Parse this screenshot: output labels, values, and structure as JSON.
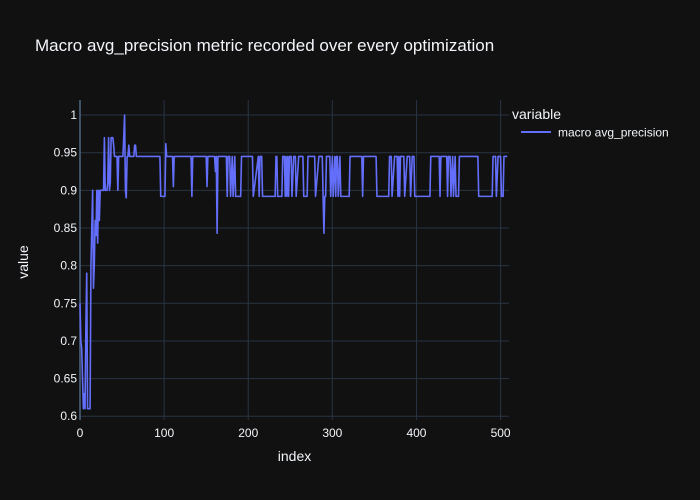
{
  "chart_data": {
    "type": "line",
    "title": "Macro avg_precision metric recorded over every optimization",
    "xlabel": "index",
    "ylabel": "value",
    "xlim": [
      0,
      510
    ],
    "ylim": [
      0.595,
      1.02
    ],
    "x_ticks": [
      0,
      100,
      200,
      300,
      400,
      500
    ],
    "y_ticks": [
      0.6,
      0.65,
      0.7,
      0.75,
      0.8,
      0.85,
      0.9,
      0.95,
      1
    ],
    "grid": true,
    "legend": {
      "title": "variable",
      "position": "top-right"
    },
    "line_color": "#636efa",
    "series": [
      {
        "name": "macro avg_precision",
        "points": [
          [
            0,
            0.75
          ],
          [
            1,
            0.7
          ],
          [
            2,
            0.69
          ],
          [
            3,
            0.65
          ],
          [
            4,
            0.61
          ],
          [
            5,
            0.63
          ],
          [
            6,
            0.61
          ],
          [
            7,
            0.72
          ],
          [
            8,
            0.79
          ],
          [
            9,
            0.61
          ],
          [
            10,
            0.61
          ],
          [
            11,
            0.61
          ],
          [
            12,
            0.61
          ],
          [
            13,
            0.8
          ],
          [
            14,
            0.85
          ],
          [
            15,
            0.9
          ],
          [
            16,
            0.77
          ],
          [
            17,
            0.8
          ],
          [
            18,
            0.86
          ],
          [
            19,
            0.84
          ],
          [
            20,
            0.9
          ],
          [
            21,
            0.83
          ],
          [
            22,
            0.9
          ],
          [
            23,
            0.86
          ],
          [
            24,
            0.9
          ],
          [
            25,
            0.9
          ],
          [
            26,
            0.9
          ],
          [
            27,
            0.9
          ],
          [
            28,
            0.9
          ],
          [
            29,
            0.97
          ],
          [
            30,
            0.9
          ],
          [
            31,
            0.9
          ],
          [
            32,
            0.9
          ],
          [
            33,
            0.91
          ],
          [
            34,
            0.97
          ],
          [
            35,
            0.9
          ],
          [
            36,
            0.91
          ],
          [
            37,
            0.97
          ],
          [
            38,
            0.97
          ],
          [
            39,
            0.97
          ],
          [
            40,
            0.96
          ],
          [
            41,
            0.945
          ],
          [
            42,
            0.945
          ],
          [
            43,
            0.945
          ],
          [
            44,
            0.945
          ],
          [
            45,
            0.9
          ],
          [
            46,
            0.945
          ],
          [
            47,
            0.945
          ],
          [
            48,
            0.945
          ],
          [
            49,
            0.945
          ],
          [
            50,
            0.945
          ],
          [
            51,
            0.945
          ],
          [
            52,
            0.97
          ],
          [
            53,
            1.0
          ],
          [
            54,
            0.9
          ],
          [
            55,
            0.89
          ],
          [
            56,
            0.945
          ],
          [
            57,
            0.945
          ],
          [
            58,
            0.96
          ],
          [
            59,
            0.945
          ],
          [
            60,
            0.945
          ],
          [
            61,
            0.945
          ],
          [
            62,
            0.945
          ],
          [
            63,
            0.945
          ],
          [
            64,
            0.945
          ],
          [
            65,
            0.96
          ],
          [
            66,
            0.96
          ],
          [
            67,
            0.945
          ],
          [
            68,
            0.945
          ],
          [
            69,
            0.945
          ],
          [
            95,
            0.945
          ],
          [
            96,
            0.892
          ],
          [
            101,
            0.892
          ],
          [
            102,
            0.962
          ],
          [
            103,
            0.945
          ],
          [
            110,
            0.945
          ],
          [
            111,
            0.905
          ],
          [
            112,
            0.945
          ],
          [
            132,
            0.945
          ],
          [
            133,
            0.892
          ],
          [
            134,
            0.945
          ],
          [
            150,
            0.945
          ],
          [
            151,
            0.905
          ],
          [
            152,
            0.945
          ],
          [
            160,
            0.945
          ],
          [
            161,
            0.925
          ],
          [
            162,
            0.945
          ],
          [
            163,
            0.843
          ],
          [
            164,
            0.945
          ],
          [
            174,
            0.945
          ],
          [
            175,
            0.892
          ],
          [
            176,
            0.945
          ],
          [
            178,
            0.945
          ],
          [
            179,
            0.892
          ],
          [
            181,
            0.945
          ],
          [
            182,
            0.892
          ],
          [
            184,
            0.945
          ],
          [
            185,
            0.892
          ],
          [
            191,
            0.892
          ],
          [
            192,
            0.945
          ],
          [
            205,
            0.945
          ],
          [
            206,
            0.892
          ],
          [
            212,
            0.945
          ],
          [
            213,
            0.892
          ],
          [
            214,
            0.945
          ],
          [
            216,
            0.945
          ],
          [
            217,
            0.892
          ],
          [
            232,
            0.892
          ],
          [
            233,
            0.945
          ],
          [
            234,
            0.945
          ],
          [
            235,
            0.892
          ],
          [
            240,
            0.892
          ],
          [
            241,
            0.945
          ],
          [
            243,
            0.945
          ],
          [
            244,
            0.892
          ],
          [
            245,
            0.945
          ],
          [
            246,
            0.892
          ],
          [
            247,
            0.945
          ],
          [
            248,
            0.892
          ],
          [
            249,
            0.945
          ],
          [
            251,
            0.945
          ],
          [
            252,
            0.892
          ],
          [
            254,
            0.945
          ],
          [
            256,
            0.945
          ],
          [
            257,
            0.892
          ],
          [
            260,
            0.945
          ],
          [
            265,
            0.945
          ],
          [
            266,
            0.892
          ],
          [
            270,
            0.892
          ],
          [
            271,
            0.945
          ],
          [
            279,
            0.945
          ],
          [
            280,
            0.892
          ],
          [
            284,
            0.945
          ],
          [
            288,
            0.945
          ],
          [
            289,
            0.892
          ],
          [
            290,
            0.843
          ],
          [
            291,
            0.892
          ],
          [
            292,
            0.892
          ],
          [
            293,
            0.945
          ],
          [
            297,
            0.945
          ],
          [
            298,
            0.892
          ],
          [
            300,
            0.945
          ],
          [
            301,
            0.892
          ],
          [
            303,
            0.945
          ],
          [
            304,
            0.892
          ],
          [
            305,
            0.945
          ],
          [
            306,
            0.945
          ],
          [
            307,
            0.892
          ],
          [
            309,
            0.945
          ],
          [
            310,
            0.892
          ],
          [
            320,
            0.892
          ],
          [
            321,
            0.945
          ],
          [
            335,
            0.945
          ],
          [
            336,
            0.892
          ],
          [
            337,
            0.945
          ],
          [
            352,
            0.945
          ],
          [
            353,
            0.892
          ],
          [
            367,
            0.892
          ],
          [
            368,
            0.945
          ],
          [
            370,
            0.945
          ],
          [
            371,
            0.892
          ],
          [
            374,
            0.945
          ],
          [
            377,
            0.945
          ],
          [
            378,
            0.892
          ],
          [
            379,
            0.945
          ],
          [
            380,
            0.892
          ],
          [
            381,
            0.945
          ],
          [
            385,
            0.945
          ],
          [
            386,
            0.892
          ],
          [
            389,
            0.945
          ],
          [
            392,
            0.945
          ],
          [
            393,
            0.892
          ],
          [
            395,
            0.945
          ],
          [
            397,
            0.945
          ],
          [
            398,
            0.892
          ],
          [
            416,
            0.892
          ],
          [
            417,
            0.945
          ],
          [
            427,
            0.945
          ],
          [
            428,
            0.892
          ],
          [
            429,
            0.945
          ],
          [
            436,
            0.945
          ],
          [
            437,
            0.892
          ],
          [
            438,
            0.945
          ],
          [
            440,
            0.945
          ],
          [
            441,
            0.892
          ],
          [
            443,
            0.945
          ],
          [
            444,
            0.892
          ],
          [
            446,
            0.945
          ],
          [
            447,
            0.892
          ],
          [
            450,
            0.892
          ],
          [
            451,
            0.945
          ],
          [
            473,
            0.945
          ],
          [
            474,
            0.892
          ],
          [
            490,
            0.892
          ],
          [
            491,
            0.945
          ],
          [
            494,
            0.945
          ],
          [
            495,
            0.892
          ],
          [
            497,
            0.945
          ],
          [
            500,
            0.945
          ],
          [
            501,
            0.892
          ],
          [
            503,
            0.892
          ],
          [
            504,
            0.945
          ],
          [
            506,
            0.945
          ],
          [
            507,
            0.945
          ],
          [
            508,
            0.945
          ]
        ]
      }
    ]
  }
}
